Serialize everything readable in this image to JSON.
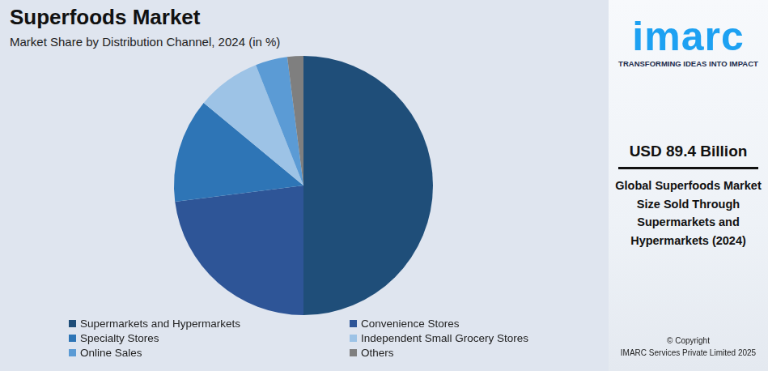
{
  "chart_data": {
    "type": "pie",
    "title": "Superfoods Market",
    "subtitle": "Market Share by Distribution Channel, 2024 (in %)",
    "categories": [
      "Supermarkets and Hypermarkets",
      "Convenience Stores",
      "Specialty Stores",
      "Independent Small Grocery Stores",
      "Online Sales",
      "Others"
    ],
    "values": [
      50,
      23,
      13,
      8,
      4,
      2
    ],
    "colors": [
      "#1f4e79",
      "#2e5597",
      "#2e75b6",
      "#9dc3e6",
      "#5b9bd5",
      "#7f7f7f"
    ],
    "legend": "bottom",
    "data_labels": false,
    "annotations": {
      "logo": "imarc",
      "tagline": "TRANSFORMING IDEAS INTO IMPACT",
      "highlight": "USD 89.4 Billion",
      "highlight_caption": "Global Superfoods Market Size Sold Through Supermarkets and Hypermarkets (2024)",
      "copyright": "© Copyright",
      "copyright_holder": "IMARC Services Private Limited 2025"
    }
  }
}
